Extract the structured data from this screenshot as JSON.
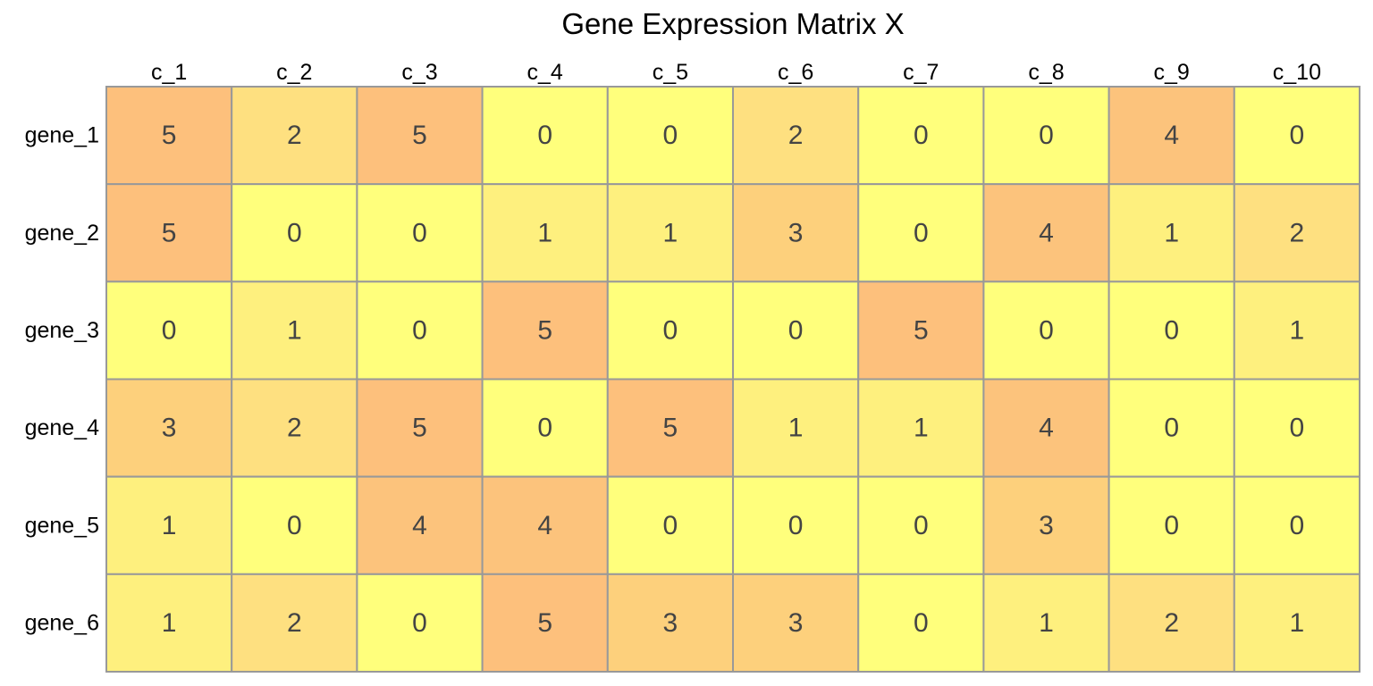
{
  "chart_data": {
    "type": "heatmap",
    "title": "Gene Expression Matrix X",
    "columns": [
      "c_1",
      "c_2",
      "c_3",
      "c_4",
      "c_5",
      "c_6",
      "c_7",
      "c_8",
      "c_9",
      "c_10"
    ],
    "rows": [
      "gene_1",
      "gene_2",
      "gene_3",
      "gene_4",
      "gene_5",
      "gene_6"
    ],
    "values": [
      [
        5,
        2,
        5,
        0,
        0,
        2,
        0,
        0,
        4,
        0
      ],
      [
        5,
        0,
        0,
        1,
        1,
        3,
        0,
        4,
        1,
        2
      ],
      [
        0,
        1,
        0,
        5,
        0,
        0,
        5,
        0,
        0,
        1
      ],
      [
        3,
        2,
        5,
        0,
        5,
        1,
        1,
        4,
        0,
        0
      ],
      [
        1,
        0,
        4,
        4,
        0,
        0,
        0,
        3,
        0,
        0
      ],
      [
        1,
        2,
        0,
        5,
        3,
        3,
        0,
        1,
        2,
        1
      ]
    ],
    "value_range": [
      0,
      5
    ],
    "color_scale": [
      "#FFFF7C",
      "#FEF07E",
      "#FEE080",
      "#FDD07C",
      "#FCC37C",
      "#FDC07C"
    ],
    "cell_border_color": "#999999",
    "legend": "none"
  }
}
